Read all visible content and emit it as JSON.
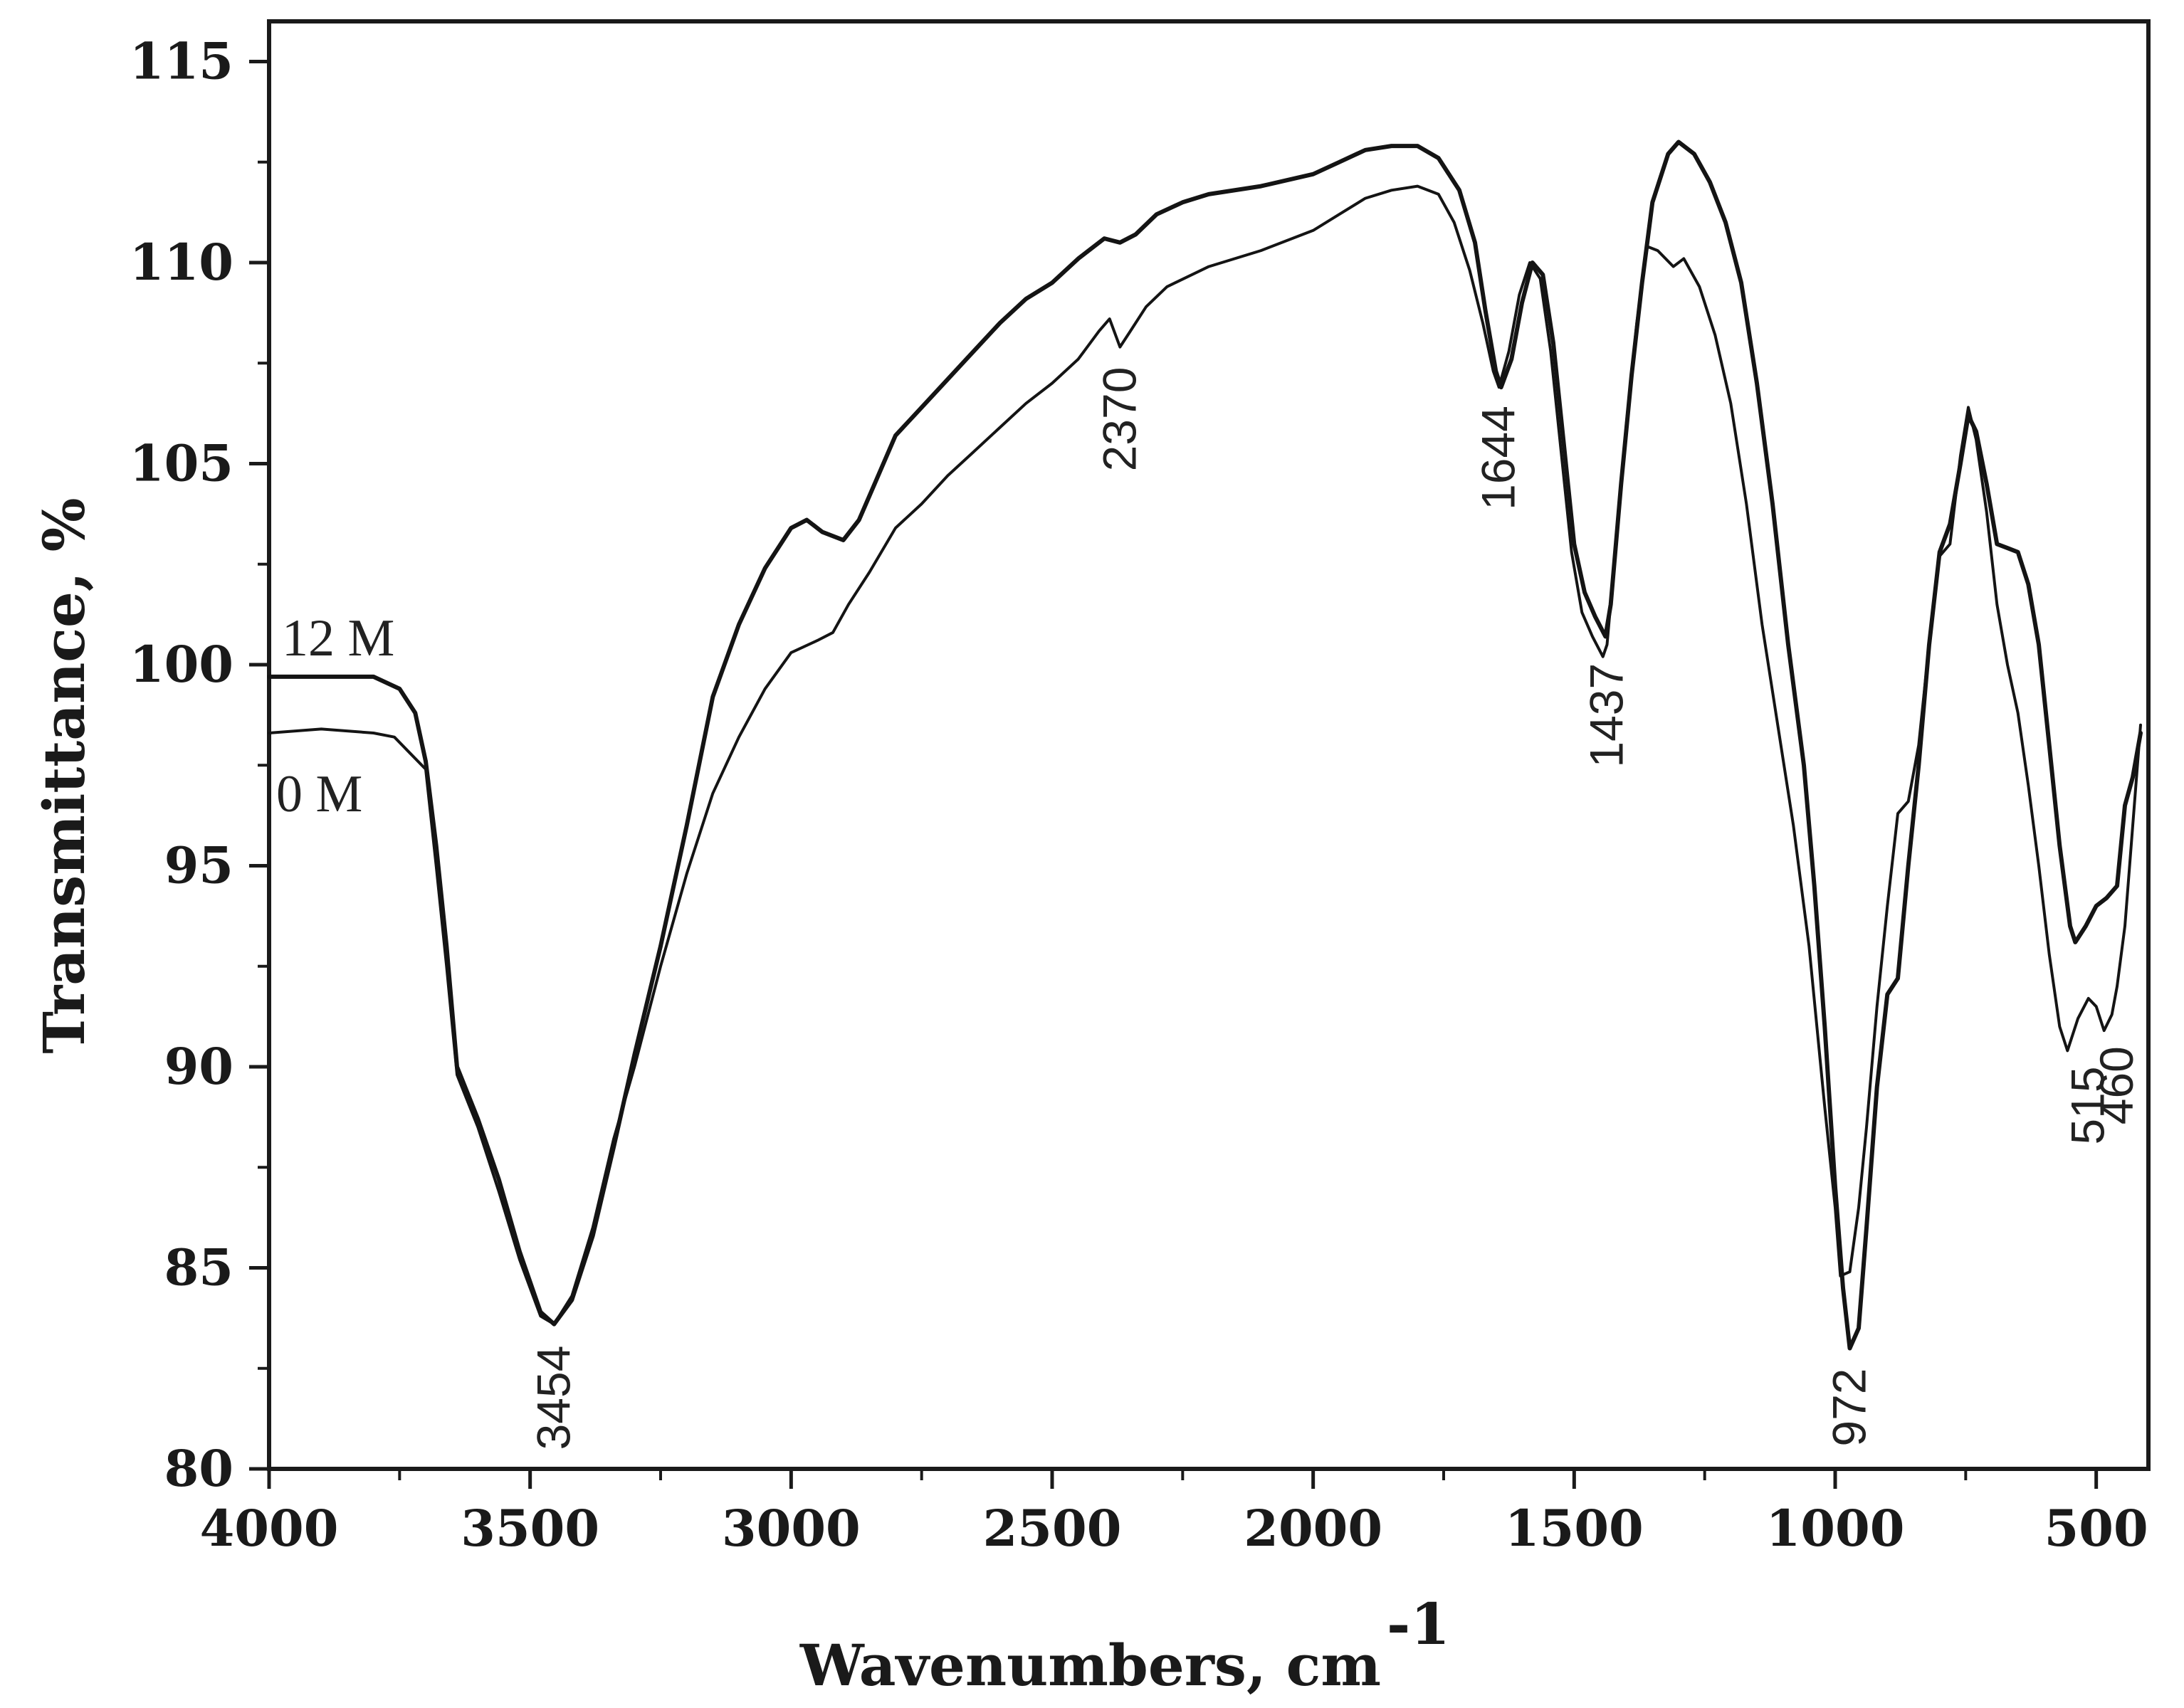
{
  "chart_data": {
    "type": "line",
    "title": "",
    "xlabel": "Wavenumbers, cm",
    "xlabel_superscript": "-1",
    "ylabel": "Transmittance, %",
    "xlim": [
      4000,
      400
    ],
    "ylim": [
      80,
      116
    ],
    "x_reversed": true,
    "grid": false,
    "x_ticks": [
      4000,
      3500,
      3000,
      2500,
      2000,
      1500,
      1000,
      500
    ],
    "y_ticks": [
      80,
      85,
      90,
      95,
      100,
      105,
      110,
      115
    ],
    "series": [
      {
        "name": "12 M",
        "points": [
          [
            4000,
            99.7
          ],
          [
            3900,
            99.7
          ],
          [
            3800,
            99.7
          ],
          [
            3750,
            99.4
          ],
          [
            3720,
            98.8
          ],
          [
            3700,
            97.6
          ],
          [
            3680,
            95.5
          ],
          [
            3660,
            93.0
          ],
          [
            3640,
            90.0
          ],
          [
            3600,
            88.7
          ],
          [
            3560,
            87.2
          ],
          [
            3520,
            85.4
          ],
          [
            3480,
            83.9
          ],
          [
            3454,
            83.6
          ],
          [
            3420,
            84.2
          ],
          [
            3380,
            85.8
          ],
          [
            3340,
            88.0
          ],
          [
            3300,
            90.3
          ],
          [
            3250,
            93.0
          ],
          [
            3200,
            96.0
          ],
          [
            3150,
            99.2
          ],
          [
            3100,
            101.0
          ],
          [
            3050,
            102.4
          ],
          [
            3000,
            103.4
          ],
          [
            2970,
            103.6
          ],
          [
            2940,
            103.3
          ],
          [
            2900,
            103.1
          ],
          [
            2870,
            103.6
          ],
          [
            2840,
            104.5
          ],
          [
            2800,
            105.7
          ],
          [
            2750,
            106.4
          ],
          [
            2700,
            107.1
          ],
          [
            2650,
            107.8
          ],
          [
            2600,
            108.5
          ],
          [
            2550,
            109.1
          ],
          [
            2500,
            109.5
          ],
          [
            2450,
            110.1
          ],
          [
            2400,
            110.6
          ],
          [
            2370,
            110.5
          ],
          [
            2340,
            110.7
          ],
          [
            2300,
            111.2
          ],
          [
            2250,
            111.5
          ],
          [
            2200,
            111.7
          ],
          [
            2100,
            111.9
          ],
          [
            2000,
            112.2
          ],
          [
            1950,
            112.5
          ],
          [
            1900,
            112.8
          ],
          [
            1850,
            112.9
          ],
          [
            1800,
            112.9
          ],
          [
            1760,
            112.6
          ],
          [
            1720,
            111.8
          ],
          [
            1690,
            110.5
          ],
          [
            1670,
            108.8
          ],
          [
            1650,
            107.3
          ],
          [
            1640,
            106.9
          ],
          [
            1620,
            107.6
          ],
          [
            1600,
            109.0
          ],
          [
            1580,
            110.0
          ],
          [
            1560,
            109.7
          ],
          [
            1540,
            108.0
          ],
          [
            1520,
            105.5
          ],
          [
            1500,
            103.0
          ],
          [
            1480,
            101.8
          ],
          [
            1460,
            101.2
          ],
          [
            1440,
            100.7
          ],
          [
            1430,
            101.5
          ],
          [
            1410,
            104.5
          ],
          [
            1390,
            107.2
          ],
          [
            1370,
            109.5
          ],
          [
            1350,
            111.5
          ],
          [
            1320,
            112.7
          ],
          [
            1300,
            113.0
          ],
          [
            1270,
            112.7
          ],
          [
            1240,
            112.0
          ],
          [
            1210,
            111.0
          ],
          [
            1180,
            109.5
          ],
          [
            1150,
            107.0
          ],
          [
            1120,
            104.0
          ],
          [
            1090,
            100.5
          ],
          [
            1060,
            97.5
          ],
          [
            1040,
            94.5
          ],
          [
            1020,
            91.0
          ],
          [
            1000,
            87.0
          ],
          [
            985,
            84.5
          ],
          [
            972,
            83.0
          ],
          [
            955,
            83.5
          ],
          [
            940,
            86.0
          ],
          [
            920,
            89.5
          ],
          [
            900,
            91.8
          ],
          [
            880,
            92.2
          ],
          [
            860,
            95.0
          ],
          [
            840,
            97.5
          ],
          [
            820,
            100.5
          ],
          [
            800,
            102.8
          ],
          [
            780,
            103.5
          ],
          [
            760,
            105.0
          ],
          [
            745,
            106.2
          ],
          [
            730,
            105.8
          ],
          [
            710,
            104.5
          ],
          [
            690,
            103.0
          ],
          [
            670,
            102.9
          ],
          [
            650,
            102.8
          ],
          [
            630,
            102.0
          ],
          [
            610,
            100.5
          ],
          [
            590,
            98.0
          ],
          [
            570,
            95.5
          ],
          [
            550,
            93.5
          ],
          [
            540,
            93.1
          ],
          [
            520,
            93.5
          ],
          [
            500,
            94.0
          ],
          [
            480,
            94.2
          ],
          [
            460,
            94.5
          ],
          [
            445,
            96.5
          ],
          [
            430,
            97.2
          ],
          [
            415,
            98.3
          ]
        ]
      },
      {
        "name": "0 M",
        "points": [
          [
            4000,
            98.3
          ],
          [
            3900,
            98.4
          ],
          [
            3800,
            98.3
          ],
          [
            3760,
            98.2
          ],
          [
            3730,
            97.8
          ],
          [
            3700,
            97.4
          ],
          [
            3680,
            95.0
          ],
          [
            3660,
            92.5
          ],
          [
            3640,
            89.8
          ],
          [
            3600,
            88.5
          ],
          [
            3560,
            86.9
          ],
          [
            3520,
            85.2
          ],
          [
            3480,
            83.8
          ],
          [
            3454,
            83.6
          ],
          [
            3420,
            84.3
          ],
          [
            3380,
            86.0
          ],
          [
            3340,
            88.2
          ],
          [
            3300,
            90.0
          ],
          [
            3250,
            92.5
          ],
          [
            3200,
            94.8
          ],
          [
            3150,
            96.8
          ],
          [
            3100,
            98.2
          ],
          [
            3050,
            99.4
          ],
          [
            3000,
            100.3
          ],
          [
            2950,
            100.6
          ],
          [
            2920,
            100.8
          ],
          [
            2890,
            101.5
          ],
          [
            2850,
            102.3
          ],
          [
            2800,
            103.4
          ],
          [
            2750,
            104.0
          ],
          [
            2700,
            104.7
          ],
          [
            2650,
            105.3
          ],
          [
            2600,
            105.9
          ],
          [
            2550,
            106.5
          ],
          [
            2500,
            107.0
          ],
          [
            2450,
            107.6
          ],
          [
            2410,
            108.3
          ],
          [
            2390,
            108.6
          ],
          [
            2370,
            107.9
          ],
          [
            2350,
            108.3
          ],
          [
            2320,
            108.9
          ],
          [
            2280,
            109.4
          ],
          [
            2200,
            109.9
          ],
          [
            2100,
            110.3
          ],
          [
            2000,
            110.8
          ],
          [
            1950,
            111.2
          ],
          [
            1900,
            111.6
          ],
          [
            1850,
            111.8
          ],
          [
            1800,
            111.9
          ],
          [
            1760,
            111.7
          ],
          [
            1730,
            111.0
          ],
          [
            1700,
            109.8
          ],
          [
            1675,
            108.5
          ],
          [
            1655,
            107.3
          ],
          [
            1644,
            106.9
          ],
          [
            1625,
            107.8
          ],
          [
            1605,
            109.2
          ],
          [
            1585,
            110.0
          ],
          [
            1565,
            109.6
          ],
          [
            1545,
            107.8
          ],
          [
            1525,
            105.3
          ],
          [
            1505,
            102.8
          ],
          [
            1485,
            101.3
          ],
          [
            1465,
            100.7
          ],
          [
            1445,
            100.2
          ],
          [
            1437,
            100.5
          ],
          [
            1420,
            103.0
          ],
          [
            1400,
            106.0
          ],
          [
            1380,
            108.5
          ],
          [
            1360,
            110.4
          ],
          [
            1340,
            110.3
          ],
          [
            1310,
            109.9
          ],
          [
            1290,
            110.1
          ],
          [
            1260,
            109.4
          ],
          [
            1230,
            108.2
          ],
          [
            1200,
            106.5
          ],
          [
            1170,
            104.0
          ],
          [
            1140,
            101.0
          ],
          [
            1110,
            98.5
          ],
          [
            1080,
            96.0
          ],
          [
            1050,
            93.0
          ],
          [
            1020,
            89.0
          ],
          [
            1000,
            86.5
          ],
          [
            990,
            84.8
          ],
          [
            972,
            84.9
          ],
          [
            955,
            86.5
          ],
          [
            940,
            88.5
          ],
          [
            920,
            91.5
          ],
          [
            900,
            94.0
          ],
          [
            880,
            96.3
          ],
          [
            860,
            96.6
          ],
          [
            840,
            98.0
          ],
          [
            820,
            100.5
          ],
          [
            800,
            102.7
          ],
          [
            780,
            103.0
          ],
          [
            760,
            105.2
          ],
          [
            745,
            106.4
          ],
          [
            730,
            105.6
          ],
          [
            710,
            103.8
          ],
          [
            690,
            101.5
          ],
          [
            670,
            100.0
          ],
          [
            650,
            98.8
          ],
          [
            630,
            97.0
          ],
          [
            610,
            95.0
          ],
          [
            590,
            92.8
          ],
          [
            570,
            91.0
          ],
          [
            555,
            90.4
          ],
          [
            535,
            91.2
          ],
          [
            515,
            91.7
          ],
          [
            500,
            91.5
          ],
          [
            485,
            90.9
          ],
          [
            470,
            91.3
          ],
          [
            460,
            92.0
          ],
          [
            445,
            93.5
          ],
          [
            430,
            96.0
          ],
          [
            415,
            98.5
          ]
        ]
      }
    ],
    "annotations": [
      {
        "text": "3454",
        "x": 3454,
        "y": 83.6
      },
      {
        "text": "2370",
        "x": 2370,
        "y": 107.9
      },
      {
        "text": "1644",
        "x": 1644,
        "y": 106.9
      },
      {
        "text": "1437",
        "x": 1437,
        "y": 100.5
      },
      {
        "text": "972",
        "x": 972,
        "y": 83.0
      },
      {
        "text": "515",
        "x": 515,
        "y": 90.4
      },
      {
        "text": "460",
        "x": 460,
        "y": 90.9
      }
    ],
    "series_labels": [
      {
        "text": "12 M",
        "series": 0
      },
      {
        "text": "0 M",
        "series": 1
      }
    ]
  }
}
